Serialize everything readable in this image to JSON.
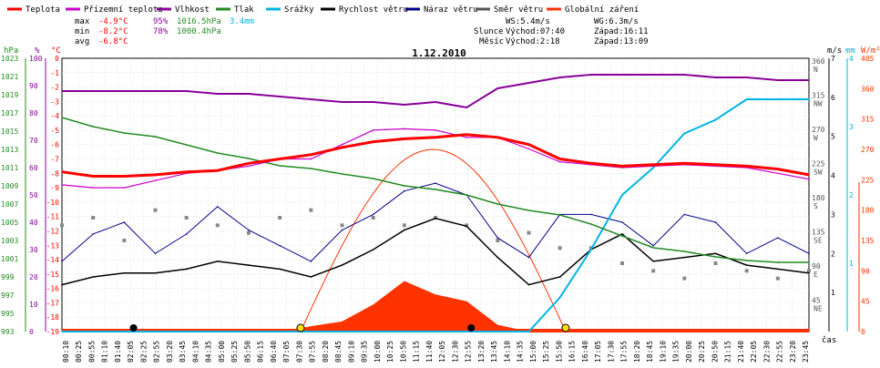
{
  "legend": [
    {
      "label": "Teplota",
      "color": "#ff0000"
    },
    {
      "label": "Přízemní teplota",
      "color": "#cc00cc"
    },
    {
      "label": "Vlhkost",
      "color": "#880099"
    },
    {
      "label": "Tlak",
      "color": "#228B22"
    },
    {
      "label": "Srážky",
      "color": "#00b4e6"
    },
    {
      "label": "Rychlost větru",
      "color": "#000000"
    },
    {
      "label": "Náraz větru",
      "color": "#00008b"
    },
    {
      "label": "Směr větru",
      "color": "#555555"
    },
    {
      "label": "Globální záření",
      "color": "#ff3300"
    }
  ],
  "stats": {
    "max": {
      "label": "max",
      "temp": "-4.9°C",
      "hum": "95%",
      "press": "1016.5hPa",
      "rain": "3.4mm"
    },
    "min": {
      "label": "min",
      "temp": "-8.2°C",
      "hum": "78%",
      "press": "1000.4hPa"
    },
    "avg": {
      "label": "avg",
      "temp": "-6.8°C"
    },
    "ws": "WS:5.4m/s",
    "wg": "WG:6.3m/s",
    "sun": {
      "label": "Slunce",
      "rise": "Východ:07:40",
      "set": "Západ:16:11"
    },
    "moon": {
      "label": "Měsíc",
      "rise": "Východ:2:18",
      "set": "Západ:13:09"
    }
  },
  "date": "1.12.2010",
  "axis_units": {
    "hpa": "hPa",
    "pct": "%",
    "degc": "°C",
    "ms": "m/s",
    "mm": "mm",
    "wm2": "W/m²",
    "time": "čas"
  },
  "left_axes": {
    "hpa": [
      "1023",
      "1021",
      "1019",
      "1017",
      "1015",
      "1013",
      "1011",
      "1009",
      "1007",
      "1005",
      "1003",
      "1001",
      "999",
      "997",
      "995",
      "993"
    ],
    "pct": [
      "100",
      "90",
      "80",
      "70",
      "60",
      "50",
      "40",
      "30",
      "20",
      "10",
      "0"
    ],
    "degc": [
      "0",
      "-1",
      "-2",
      "-3",
      "-4",
      "-5",
      "-6",
      "-7",
      "-8",
      "-9",
      "-10",
      "-11",
      "-12",
      "-13",
      "-14",
      "-15",
      "-16",
      "-17",
      "-18",
      "-19"
    ]
  },
  "right_axes": {
    "dir_deg": [
      "360",
      "315",
      "270",
      "225",
      "180",
      "135",
      "90",
      "45"
    ],
    "dir_label": [
      "N",
      "NW",
      "W",
      "SW",
      "S",
      "SE",
      "E",
      "NE"
    ],
    "ms": [
      "7",
      "6",
      "5",
      "4",
      "3",
      "2",
      "1"
    ],
    "mm": [
      "4",
      "3",
      "2",
      "1"
    ],
    "wm2": [
      "405",
      "360",
      "315",
      "270",
      "225",
      "180",
      "135",
      "90",
      "45",
      "0"
    ]
  },
  "time_labels": [
    "00:10",
    "00:25",
    "00:55",
    "01:10",
    "01:40",
    "02:05",
    "02:25",
    "02:55",
    "03:20",
    "03:45",
    "04:10",
    "04:35",
    "05:00",
    "05:25",
    "05:50",
    "06:15",
    "06:40",
    "07:05",
    "07:30",
    "07:55",
    "08:20",
    "08:45",
    "09:10",
    "09:35",
    "10:00",
    "10:25",
    "10:50",
    "11:15",
    "11:40",
    "12:05",
    "12:30",
    "12:55",
    "13:20",
    "13:45",
    "14:10",
    "14:35",
    "15:00",
    "15:25",
    "15:50",
    "16:15",
    "16:40",
    "17:05",
    "17:30",
    "17:55",
    "18:20",
    "18:45",
    "19:10",
    "19:35",
    "20:00",
    "20:25",
    "20:50",
    "21:15",
    "21:40",
    "22:05",
    "22:30",
    "22:55",
    "23:20",
    "23:45"
  ],
  "chart_data": {
    "type": "line",
    "title": "1.12.2010",
    "x_hours": [
      0,
      1,
      2,
      3,
      4,
      5,
      6,
      7,
      8,
      9,
      10,
      11,
      12,
      13,
      14,
      15,
      16,
      17,
      18,
      19,
      20,
      21,
      22,
      23,
      24
    ],
    "series": [
      {
        "name": "Teplota",
        "unit": "°C",
        "color": "#ff0000",
        "values": [
          -7.9,
          -8.2,
          -8.2,
          -8.1,
          -7.9,
          -7.8,
          -7.3,
          -7.0,
          -6.7,
          -6.2,
          -5.8,
          -5.6,
          -5.5,
          -5.3,
          -5.5,
          -6.0,
          -7.0,
          -7.3,
          -7.5,
          -7.4,
          -7.3,
          -7.4,
          -7.5,
          -7.7,
          -8.1
        ]
      },
      {
        "name": "Přízemní teplota",
        "unit": "°C",
        "color": "#cc00cc",
        "values": [
          -8.8,
          -9.0,
          -9.0,
          -8.5,
          -8.0,
          -7.8,
          -7.5,
          -7.0,
          -7.0,
          -6.0,
          -5.0,
          -4.9,
          -5.0,
          -5.5,
          -5.5,
          -6.3,
          -7.2,
          -7.4,
          -7.6,
          -7.5,
          -7.4,
          -7.5,
          -7.6,
          -8.0,
          -8.4
        ]
      },
      {
        "name": "Vlhkost",
        "unit": "%",
        "color": "#880099",
        "values": [
          88,
          88,
          88,
          88,
          88,
          87,
          87,
          86,
          85,
          84,
          84,
          83,
          84,
          82,
          89,
          91,
          93,
          94,
          94,
          94,
          94,
          93,
          93,
          92,
          92
        ]
      },
      {
        "name": "Tlak",
        "unit": "hPa",
        "color": "#228B22",
        "values": [
          1016.5,
          1015.5,
          1014.8,
          1014.4,
          1013.5,
          1012.6,
          1012.0,
          1011.2,
          1010.9,
          1010.3,
          1009.8,
          1009.0,
          1008.6,
          1008.0,
          1007.0,
          1006.3,
          1005.8,
          1004.8,
          1003.5,
          1002.2,
          1001.8,
          1001.2,
          1000.8,
          1000.6,
          1000.6
        ]
      },
      {
        "name": "Srážky",
        "unit": "mm",
        "color": "#00b4e6",
        "values": [
          0,
          0,
          0,
          0,
          0,
          0,
          0,
          0,
          0,
          0,
          0,
          0,
          0,
          0,
          0,
          0,
          0.5,
          1.2,
          2.0,
          2.4,
          2.9,
          3.1,
          3.4,
          3.4,
          3.4
        ]
      },
      {
        "name": "Rychlost větru",
        "unit": "m/s",
        "color": "#000000",
        "values": [
          1.2,
          1.4,
          1.5,
          1.5,
          1.6,
          1.8,
          1.7,
          1.6,
          1.4,
          1.7,
          2.1,
          2.6,
          2.9,
          2.7,
          1.9,
          1.2,
          1.4,
          2.1,
          2.5,
          1.8,
          1.9,
          2.0,
          1.7,
          1.6,
          1.5
        ]
      },
      {
        "name": "Náraz větru",
        "unit": "m/s",
        "color": "#00008b",
        "values": [
          1.8,
          2.5,
          2.8,
          2.0,
          2.5,
          3.2,
          2.6,
          2.2,
          1.8,
          2.6,
          3.0,
          3.6,
          3.8,
          3.5,
          2.4,
          1.9,
          3.0,
          3.0,
          2.8,
          2.2,
          3.0,
          2.8,
          2.0,
          2.4,
          2.0
        ]
      },
      {
        "name": "Globální záření",
        "unit": "W/m²",
        "color": "#ff3300",
        "values": [
          0,
          0,
          0,
          0,
          0,
          0,
          0,
          0,
          8,
          15,
          40,
          75,
          55,
          45,
          10,
          0,
          0,
          0,
          0,
          0,
          0,
          0,
          0,
          0,
          0
        ]
      }
    ],
    "wind_direction_deg": [
      140,
      150,
      120,
      160,
      150,
      140,
      130,
      150,
      160,
      140,
      150,
      140,
      150,
      140,
      120,
      130,
      110,
      110,
      90,
      80,
      70,
      90,
      80,
      70,
      80
    ],
    "sun_rise": "07:40",
    "sun_set": "16:11",
    "moon_rise": "2:18",
    "moon_set": "13:09",
    "ylim_temp": [
      -19,
      0
    ],
    "ylim_hum": [
      0,
      100
    ],
    "ylim_press": [
      993,
      1023
    ],
    "ylim_wind": [
      0,
      7
    ],
    "ylim_rain": [
      0,
      4
    ],
    "ylim_rad": [
      0,
      405
    ],
    "ylim_dir": [
      0,
      360
    ],
    "grid": true,
    "legend_position": "top"
  }
}
